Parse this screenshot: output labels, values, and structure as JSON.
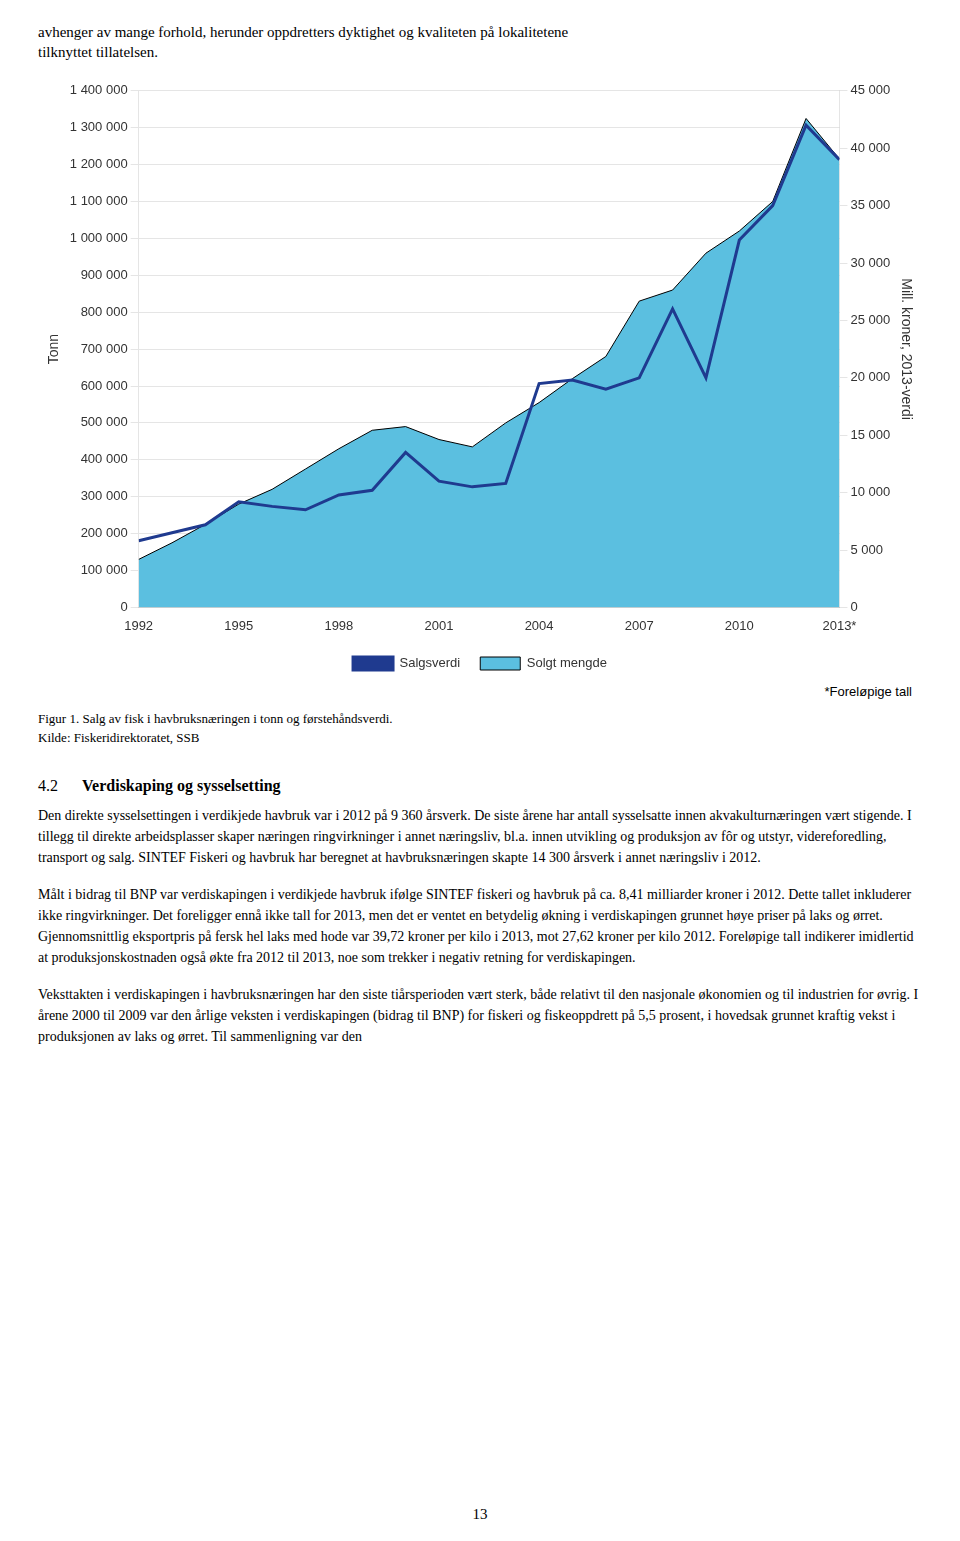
{
  "chart_data": {
    "type": "line",
    "x": [
      1992,
      1993,
      1994,
      1995,
      1996,
      1997,
      1998,
      1999,
      2000,
      2001,
      2002,
      2003,
      2004,
      2005,
      2006,
      2007,
      2008,
      2009,
      2010,
      2011,
      2012,
      2013
    ],
    "series": [
      {
        "name": "Solgt mengde",
        "type": "area",
        "color": "#5BBFE0",
        "values": [
          130000,
          175000,
          225000,
          280000,
          320000,
          375000,
          430000,
          480000,
          490000,
          455000,
          435000,
          500000,
          555000,
          620000,
          680000,
          830000,
          860000,
          960000,
          1020000,
          1100000,
          1325000,
          1215000
        ]
      },
      {
        "name": "Salgsverdi",
        "type": "line",
        "color": "#1F3A8F",
        "axis": "y2",
        "values": [
          5800,
          6500,
          7200,
          9200,
          8800,
          8500,
          9800,
          10200,
          13500,
          11000,
          10500,
          10800,
          19500,
          19800,
          19000,
          20000,
          26000,
          20000,
          32000,
          35000,
          42000,
          39000
        ]
      }
    ],
    "xlim": [
      1992,
      2013
    ],
    "xticks": [
      1992,
      1995,
      1998,
      2001,
      2004,
      2007,
      2010,
      {
        "value": 2013,
        "label": "2013*"
      }
    ],
    "ylabel": "Tonn",
    "ylim": [
      0,
      1400000
    ],
    "yticks": [
      0,
      {
        "value": 100000,
        "label": "100 000"
      },
      {
        "value": 200000,
        "label": "200 000"
      },
      {
        "value": 300000,
        "label": "300 000"
      },
      {
        "value": 400000,
        "label": "400 000"
      },
      {
        "value": 500000,
        "label": "500 000"
      },
      {
        "value": 600000,
        "label": "600 000"
      },
      {
        "value": 700000,
        "label": "700 000"
      },
      {
        "value": 800000,
        "label": "800 000"
      },
      {
        "value": 900000,
        "label": "900 000"
      },
      {
        "value": 1000000,
        "label": "1 000 000"
      },
      {
        "value": 1100000,
        "label": "1 100 000"
      },
      {
        "value": 1200000,
        "label": "1 200 000"
      },
      {
        "value": 1300000,
        "label": "1 300 000"
      },
      {
        "value": 1400000,
        "label": "1 400 000"
      }
    ],
    "y2label": "Mill. kroner, 2013-verdi",
    "y2lim": [
      0,
      45000
    ],
    "y2ticks": [
      0,
      {
        "value": 5000,
        "label": "5 000"
      },
      {
        "value": 10000,
        "label": "10 000"
      },
      {
        "value": 15000,
        "label": "15 000"
      },
      {
        "value": 20000,
        "label": "20 000"
      },
      {
        "value": 25000,
        "label": "25 000"
      },
      {
        "value": 30000,
        "label": "30 000"
      },
      {
        "value": 35000,
        "label": "35 000"
      },
      {
        "value": 40000,
        "label": "40 000"
      },
      {
        "value": 45000,
        "label": "45 000"
      }
    ],
    "grid": true,
    "legend": "bottom",
    "annotations": [
      "*Foreløpige tall"
    ]
  },
  "page": {
    "intro": [
      "avhenger av mange forhold, herunder oppdretters dyktighet og kvaliteten på lokalitetene",
      "tilknyttet tillatelsen."
    ],
    "caption": [
      "Figur 1. Salg av fisk i havbruksnæringen i tonn og førstehåndsverdi.",
      "Kilde: Fiskeridirektoratet, SSB"
    ],
    "heading_number": "4.2",
    "heading_title": "Verdiskaping og sysselsetting",
    "paragraphs": [
      "Den direkte sysselsettingen i verdikjede havbruk var i 2012 på 9 360 årsverk. De siste årene har antall sysselsatte innen akvakulturnæringen vært stigende. I tillegg til direkte arbeidsplasser skaper næringen ringvirkninger i annet næringsliv, bl.a. innen utvikling og produksjon av fôr og utstyr, videreforedling, transport og salg. SINTEF Fiskeri og havbruk har beregnet at havbruksnæringen skapte 14 300 årsverk i annet næringsliv i 2012.",
      "Målt i bidrag til BNP var verdiskapingen i verdikjede havbruk ifølge SINTEF fiskeri og havbruk på ca. 8,41 milliarder kroner i 2012. Dette tallet inkluderer ikke ringvirkninger. Det foreligger ennå ikke tall for 2013, men det er ventet en betydelig økning i verdiskapingen grunnet høye priser på laks og ørret. Gjennomsnittlig eksportpris på fersk hel laks med hode var 39,72 kroner per kilo i 2013, mot 27,62 kroner per kilo 2012. Foreløpige tall indikerer imidlertid at produksjonskostnaden også økte fra 2012 til 2013, noe som trekker i negativ retning for verdiskapingen.",
      "Veksttakten i verdiskapingen i havbruksnæringen har den siste tiårsperioden vært sterk, både relativt til den nasjonale økonomien og til industrien for øvrig. I årene 2000 til 2009 var den årlige veksten i verdiskapingen (bidrag til BNP) for fiskeri og fiskeoppdrett på 5,5 prosent, i hovedsak grunnet kraftig vekst i produksjonen av laks og ørret. Til sammenligning var den"
    ],
    "page_number": "13"
  }
}
